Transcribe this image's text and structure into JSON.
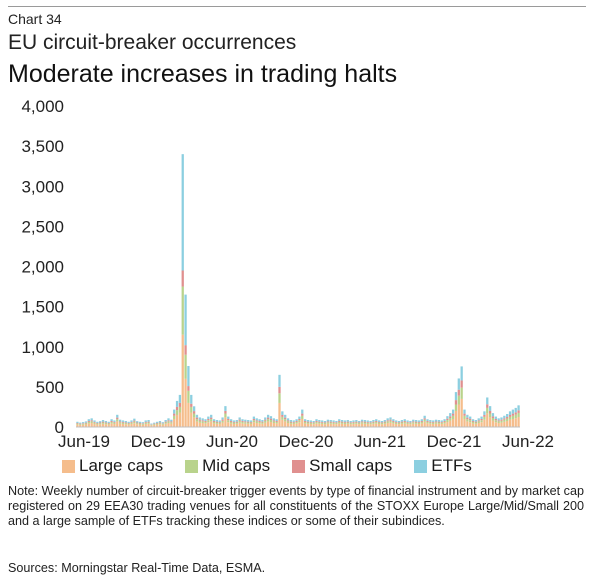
{
  "header": {
    "chart_number": "Chart 34",
    "title": "EU circuit-breaker occurrences",
    "subtitle": "Moderate increases in trading halts"
  },
  "chart_data": {
    "type": "bar",
    "stacked": true,
    "frequency": "weekly",
    "ylim": [
      0,
      4000
    ],
    "y_ticks": [
      "4,000",
      "3,500",
      "3,000",
      "2,500",
      "2,000",
      "1,500",
      "1,000",
      "500",
      "0"
    ],
    "x_tick_labels": [
      "Jun-19",
      "Dec-19",
      "Jun-20",
      "Dec-20",
      "Jun-21",
      "Dec-21",
      "Jun-22"
    ],
    "x_tick_weeks": [
      0,
      26,
      52,
      78,
      104,
      130,
      156
    ],
    "grid": false,
    "legend_position": "bottom",
    "colors": {
      "Large caps": "#f5bd8c",
      "Mid caps": "#b9d38c",
      "Small caps": "#e0908f",
      "ETFs": "#8ccfe0"
    },
    "series": [
      {
        "name": "Large caps",
        "values": [
          30,
          25,
          28,
          32,
          45,
          50,
          38,
          30,
          34,
          40,
          35,
          30,
          45,
          38,
          70,
          42,
          38,
          35,
          30,
          38,
          48,
          34,
          30,
          28,
          38,
          40,
          20,
          25,
          30,
          35,
          28,
          40,
          50,
          42,
          100,
          150,
          180,
          1150,
          600,
          300,
          180,
          120,
          70,
          55,
          50,
          45,
          60,
          70,
          45,
          40,
          38,
          55,
          120,
          60,
          45,
          38,
          40,
          55,
          45,
          42,
          40,
          38,
          60,
          50,
          45,
          40,
          55,
          70,
          62,
          50,
          45,
          300,
          90,
          70,
          50,
          40,
          38,
          45,
          60,
          100,
          45,
          40,
          38,
          35,
          45,
          40,
          38,
          35,
          42,
          40,
          38,
          35,
          45,
          40,
          38,
          40,
          35,
          38,
          40,
          35,
          42,
          40,
          38,
          35,
          40,
          45,
          38,
          35,
          40,
          50,
          55,
          45,
          38,
          35,
          40,
          45,
          38,
          35,
          42,
          40,
          38,
          45,
          65,
          45,
          40,
          38,
          42,
          40,
          38,
          45,
          62,
          80,
          100,
          200,
          280,
          350,
          100,
          70,
          60,
          45,
          40,
          50,
          60,
          90,
          170,
          120,
          80,
          60,
          50,
          55,
          65,
          75,
          90,
          100,
          110,
          125
        ]
      },
      {
        "name": "Mid caps",
        "values": [
          12,
          10,
          11,
          13,
          18,
          20,
          15,
          12,
          13,
          16,
          14,
          12,
          18,
          15,
          28,
          17,
          15,
          14,
          12,
          15,
          19,
          13,
          12,
          11,
          15,
          16,
          8,
          10,
          12,
          14,
          11,
          16,
          20,
          17,
          40,
          60,
          70,
          600,
          300,
          150,
          70,
          48,
          28,
          22,
          20,
          18,
          24,
          28,
          18,
          16,
          15,
          22,
          48,
          24,
          18,
          15,
          16,
          22,
          18,
          17,
          16,
          15,
          24,
          20,
          18,
          16,
          22,
          28,
          25,
          20,
          18,
          120,
          36,
          28,
          20,
          16,
          15,
          18,
          24,
          40,
          18,
          16,
          15,
          14,
          18,
          16,
          15,
          14,
          17,
          16,
          15,
          14,
          18,
          16,
          15,
          16,
          14,
          15,
          16,
          14,
          17,
          16,
          15,
          14,
          16,
          18,
          15,
          14,
          16,
          20,
          22,
          18,
          15,
          14,
          16,
          18,
          15,
          14,
          17,
          16,
          15,
          18,
          26,
          18,
          16,
          15,
          17,
          16,
          15,
          18,
          25,
          32,
          40,
          80,
          110,
          140,
          40,
          28,
          24,
          18,
          16,
          20,
          24,
          36,
          68,
          48,
          32,
          24,
          20,
          22,
          26,
          30,
          36,
          40,
          44,
          50
        ]
      },
      {
        "name": "Small caps",
        "values": [
          8,
          7,
          8,
          9,
          12,
          13,
          10,
          8,
          9,
          11,
          9,
          8,
          12,
          10,
          19,
          11,
          10,
          9,
          8,
          10,
          13,
          9,
          8,
          7,
          10,
          11,
          5,
          7,
          8,
          9,
          7,
          11,
          13,
          11,
          27,
          40,
          50,
          200,
          120,
          60,
          40,
          30,
          19,
          15,
          13,
          12,
          16,
          19,
          12,
          11,
          10,
          15,
          32,
          16,
          12,
          10,
          11,
          15,
          12,
          11,
          11,
          10,
          16,
          13,
          12,
          11,
          15,
          19,
          17,
          13,
          12,
          80,
          24,
          19,
          13,
          11,
          10,
          12,
          16,
          27,
          12,
          11,
          10,
          9,
          12,
          11,
          10,
          9,
          11,
          11,
          10,
          9,
          12,
          11,
          10,
          11,
          9,
          10,
          11,
          9,
          11,
          11,
          10,
          9,
          11,
          12,
          10,
          9,
          11,
          13,
          15,
          12,
          10,
          9,
          11,
          12,
          10,
          9,
          11,
          11,
          10,
          12,
          17,
          12,
          11,
          10,
          11,
          11,
          10,
          12,
          17,
          21,
          27,
          55,
          75,
          90,
          27,
          19,
          16,
          12,
          11,
          13,
          16,
          24,
          45,
          32,
          21,
          16,
          13,
          15,
          17,
          20,
          24,
          27,
          29,
          33
        ]
      },
      {
        "name": "ETFs",
        "values": [
          15,
          13,
          14,
          16,
          22,
          25,
          19,
          15,
          17,
          20,
          17,
          15,
          22,
          19,
          35,
          21,
          19,
          17,
          15,
          19,
          24,
          17,
          15,
          14,
          19,
          20,
          10,
          12,
          15,
          17,
          14,
          20,
          25,
          21,
          50,
          75,
          100,
          1450,
          630,
          250,
          110,
          60,
          35,
          27,
          25,
          22,
          30,
          35,
          22,
          20,
          19,
          27,
          60,
          30,
          22,
          19,
          20,
          27,
          22,
          21,
          20,
          19,
          30,
          25,
          22,
          20,
          27,
          35,
          31,
          25,
          22,
          150,
          45,
          35,
          25,
          20,
          19,
          22,
          30,
          50,
          22,
          20,
          19,
          17,
          22,
          20,
          19,
          17,
          21,
          20,
          19,
          17,
          22,
          20,
          19,
          20,
          17,
          19,
          20,
          17,
          21,
          20,
          19,
          17,
          20,
          22,
          19,
          17,
          20,
          25,
          27,
          22,
          19,
          17,
          20,
          22,
          19,
          17,
          21,
          20,
          19,
          22,
          32,
          22,
          20,
          19,
          21,
          20,
          19,
          22,
          31,
          40,
          50,
          100,
          140,
          175,
          50,
          35,
          30,
          22,
          20,
          25,
          30,
          45,
          85,
          60,
          40,
          30,
          25,
          27,
          32,
          37,
          45,
          50,
          55,
          62
        ]
      }
    ]
  },
  "note": "Note: Weekly number of circuit-breaker trigger events by type of financial instrument and by market cap registered on 29 EEA30 trading venues for all constituents of the STOXX Europe Large/Mid/Small 200 and a large sample of ETFs tracking these indices or some of their subindices.",
  "source": "Sources: Morningstar Real-Time Data, ESMA."
}
